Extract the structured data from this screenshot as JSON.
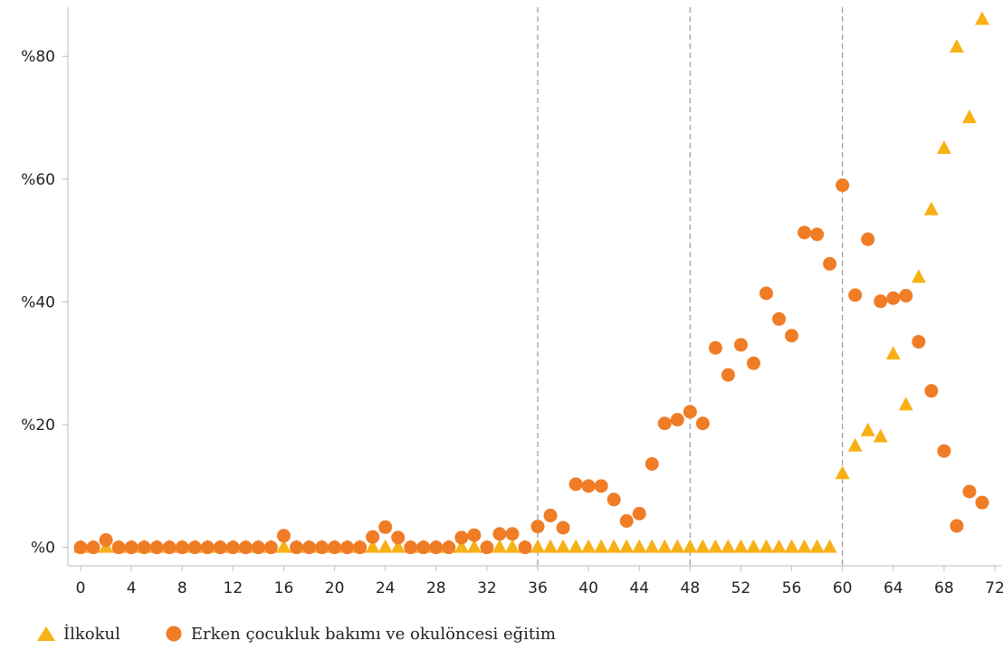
{
  "chart_data": {
    "type": "scatter",
    "title": "",
    "xlabel": "",
    "ylabel": "",
    "xlim": [
      -1,
      72.5
    ],
    "ylim": [
      -3,
      88
    ],
    "x_ticks": [
      0,
      4,
      8,
      12,
      16,
      20,
      24,
      28,
      32,
      36,
      40,
      44,
      48,
      52,
      56,
      60,
      64,
      68,
      72
    ],
    "x_tick_labels": [
      "0",
      "4",
      "8",
      "12",
      "16",
      "20",
      "24",
      "28",
      "32",
      "36",
      "40",
      "44",
      "48",
      "52",
      "56",
      "60",
      "64",
      "68",
      "72"
    ],
    "y_ticks": [
      0,
      20,
      40,
      60,
      80
    ],
    "y_tick_labels": [
      "%0",
      "%20",
      "%40",
      "%60",
      "%80"
    ],
    "reference_lines_x": [
      36,
      48,
      60
    ],
    "grid": false,
    "legend_position": "bottom-left",
    "colors": {
      "ilkokul": "#f7b117",
      "erken": "#f07c26",
      "axis": "#bbbbbb",
      "refline": "#999999"
    },
    "series": [
      {
        "name": "İlkokul",
        "marker": "triangle",
        "x": [
          0,
          1,
          2,
          3,
          4,
          5,
          6,
          7,
          8,
          9,
          10,
          11,
          12,
          13,
          14,
          15,
          16,
          17,
          18,
          19,
          20,
          21,
          22,
          23,
          24,
          25,
          26,
          27,
          28,
          29,
          30,
          31,
          32,
          33,
          34,
          35,
          36,
          37,
          38,
          39,
          40,
          41,
          42,
          43,
          44,
          45,
          46,
          47,
          48,
          49,
          50,
          51,
          52,
          53,
          54,
          55,
          56,
          57,
          58,
          59,
          60,
          61,
          62,
          63,
          64,
          65,
          66,
          67,
          68,
          69,
          70,
          71
        ],
        "y": [
          0,
          0,
          0,
          0,
          0,
          0,
          0,
          0,
          0,
          0,
          0,
          0,
          0,
          0,
          0,
          0,
          0,
          0,
          0,
          0,
          0,
          0,
          0,
          0,
          0,
          0,
          0,
          0,
          0,
          0,
          0,
          0,
          0,
          0,
          0,
          0,
          0,
          0,
          0,
          0,
          0,
          0,
          0,
          0,
          0,
          0,
          0,
          0,
          0,
          0,
          0,
          0,
          0,
          0,
          0,
          0,
          0,
          0,
          0,
          0,
          12,
          16.5,
          19,
          18,
          31.5,
          23.2,
          44,
          55,
          65,
          81.5,
          70,
          86
        ]
      },
      {
        "name": "Erken çocukluk bakımı ve okulöncesi eğitim",
        "marker": "circle",
        "x": [
          0,
          1,
          2,
          3,
          4,
          5,
          6,
          7,
          8,
          9,
          10,
          11,
          12,
          13,
          14,
          15,
          16,
          17,
          18,
          19,
          20,
          21,
          22,
          23,
          24,
          25,
          26,
          27,
          28,
          29,
          30,
          31,
          32,
          33,
          34,
          35,
          36,
          37,
          38,
          39,
          40,
          41,
          42,
          43,
          44,
          45,
          46,
          47,
          48,
          49,
          50,
          51,
          52,
          53,
          54,
          55,
          56,
          57,
          58,
          59,
          60,
          61,
          62,
          63,
          64,
          65,
          66,
          67,
          68,
          69,
          70,
          71
        ],
        "y": [
          0,
          0,
          1.2,
          0,
          0,
          0,
          0,
          0,
          0,
          0,
          0,
          0,
          0,
          0,
          0,
          0,
          1.9,
          0,
          0,
          0,
          0,
          0,
          0,
          1.7,
          3.3,
          1.6,
          0,
          0,
          0,
          0,
          1.6,
          2,
          0,
          2.2,
          2.2,
          0,
          3.4,
          5.2,
          3.2,
          10.3,
          10,
          10,
          7.8,
          4.3,
          5.5,
          13.6,
          20.2,
          20.8,
          22.1,
          20.2,
          32.5,
          28.1,
          33,
          30,
          41.4,
          37.2,
          34.5,
          51.3,
          51,
          46.2,
          59,
          41.1,
          50.2,
          40.1,
          40.6,
          41,
          33.5,
          25.5,
          15.7,
          3.5,
          9.1,
          7.3
        ]
      }
    ]
  }
}
